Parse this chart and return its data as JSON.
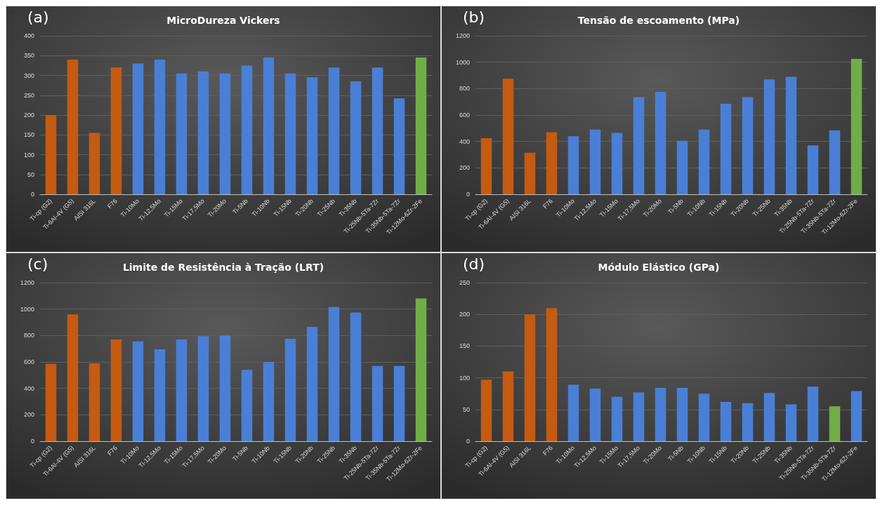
{
  "chart_data": [
    {
      "type": "bar",
      "title": "MicroDureza Vickers",
      "annotations": [
        "(a)"
      ],
      "categories": [
        "Ti-cp (G2)",
        "Ti-6Al-4V (G5)",
        "AISI 316L",
        "F76",
        "Ti-10Mo",
        "Ti-12,5Mo",
        "Ti-15Mo",
        "Ti-17,5Mo",
        "Ti-20Mo",
        "Ti-5Nb",
        "Ti-10Nb",
        "Ti-15Nb",
        "Ti-20Nb",
        "Ti-25Nb",
        "Ti-35Nb",
        "Ti-25Nb-5Ta-7Zr",
        "Ti-35Nb-5Ta-7Zr",
        "Ti-12Mo-6Zr-2Fe"
      ],
      "values": [
        200,
        340,
        155,
        320,
        330,
        340,
        305,
        310,
        305,
        325,
        345,
        305,
        295,
        320,
        285,
        320,
        242,
        345
      ],
      "colors": [
        "#c55a11",
        "#c55a11",
        "#c55a11",
        "#c55a11",
        "#4a7fd6",
        "#4a7fd6",
        "#4a7fd6",
        "#4a7fd6",
        "#4a7fd6",
        "#4a7fd6",
        "#4a7fd6",
        "#4a7fd6",
        "#4a7fd6",
        "#4a7fd6",
        "#4a7fd6",
        "#4a7fd6",
        "#4a7fd6",
        "#70ad47"
      ],
      "ylim": [
        0,
        400
      ],
      "yticks": [
        0,
        50,
        100,
        150,
        200,
        250,
        300,
        350,
        400
      ],
      "grid": "y"
    },
    {
      "type": "bar",
      "title": "Tensão de escoamento (MPa)",
      "annotations": [
        "(b)"
      ],
      "categories": [
        "Ti-cp (G2)",
        "Ti-6Al-4V (G5)",
        "AISI 316L",
        "F76",
        "Ti-10Mo",
        "Ti-12,5Mo",
        "Ti-15Mo",
        "Ti-17,5Mo",
        "Ti-20Mo",
        "Ti-5Nb",
        "Ti-10Nb",
        "Ti-15Nb",
        "Ti-20Nb",
        "Ti-25Nb",
        "Ti-35Nb",
        "Ti-25Nb-5Ta-7Zr",
        "Ti-35Nb-5Ta-7Zr",
        "Ti-12Mo-6Zr-2Fe"
      ],
      "values": [
        425,
        875,
        315,
        470,
        440,
        490,
        465,
        735,
        775,
        405,
        490,
        685,
        735,
        870,
        890,
        370,
        485,
        1025
      ],
      "colors": [
        "#c55a11",
        "#c55a11",
        "#c55a11",
        "#c55a11",
        "#4a7fd6",
        "#4a7fd6",
        "#4a7fd6",
        "#4a7fd6",
        "#4a7fd6",
        "#4a7fd6",
        "#4a7fd6",
        "#4a7fd6",
        "#4a7fd6",
        "#4a7fd6",
        "#4a7fd6",
        "#4a7fd6",
        "#4a7fd6",
        "#70ad47"
      ],
      "ylim": [
        0,
        1200
      ],
      "yticks": [
        0,
        200,
        400,
        600,
        800,
        1000,
        1200
      ],
      "grid": "y"
    },
    {
      "type": "bar",
      "title": "Limite de Resistência à Tração (LRT)",
      "annotations": [
        "(c)"
      ],
      "categories": [
        "Ti-cp (G2)",
        "Ti-6Al-4V (G5)",
        "AISI 316L",
        "F76",
        "Ti-10Mo",
        "Ti-12,5Mo",
        "Ti-15Mo",
        "Ti-17,5Mo",
        "Ti-20Mo",
        "Ti-5Nb",
        "Ti-10Nb",
        "Ti-15Nb",
        "Ti-20Nb",
        "Ti-25Nb",
        "Ti-35Nb",
        "Ti-25Nb-5Ta-7Zr",
        "Ti-35Nb-5Ta-7Zr",
        "Ti-12Mo-6Zr-2Fe"
      ],
      "values": [
        585,
        960,
        590,
        770,
        755,
        695,
        770,
        795,
        800,
        540,
        600,
        775,
        865,
        1015,
        975,
        570,
        570,
        1080
      ],
      "colors": [
        "#c55a11",
        "#c55a11",
        "#c55a11",
        "#c55a11",
        "#4a7fd6",
        "#4a7fd6",
        "#4a7fd6",
        "#4a7fd6",
        "#4a7fd6",
        "#4a7fd6",
        "#4a7fd6",
        "#4a7fd6",
        "#4a7fd6",
        "#4a7fd6",
        "#4a7fd6",
        "#4a7fd6",
        "#4a7fd6",
        "#70ad47"
      ],
      "ylim": [
        0,
        1200
      ],
      "yticks": [
        0,
        200,
        400,
        600,
        800,
        1000,
        1200
      ],
      "grid": "y"
    },
    {
      "type": "bar",
      "title": "Módulo Elástico (GPa)",
      "annotations": [
        "(d)"
      ],
      "categories": [
        "Ti-cp (G2)",
        "Ti-6Al-4V (G5)",
        "AISI 316L",
        "F76",
        "Ti-10Mo",
        "Ti-12,5Mo",
        "Ti-15Mo",
        "Ti-17,5Mo",
        "Ti-20Mo",
        "Ti-5Nb",
        "Ti-10Nb",
        "Ti-15Nb",
        "Ti-20Nb",
        "Ti-25Nb",
        "Ti-35Nb",
        "Ti-25Nb-5Ta-7Zr",
        "Ti-35Nb-5Ta-7Zr",
        "Ti-12Mo-6Zr-2Fe"
      ],
      "values": [
        97,
        110,
        200,
        210,
        89,
        83,
        70,
        77,
        84,
        84,
        75,
        62,
        60,
        76,
        58,
        86,
        55,
        79
      ],
      "colors": [
        "#c55a11",
        "#c55a11",
        "#c55a11",
        "#c55a11",
        "#4a7fd6",
        "#4a7fd6",
        "#4a7fd6",
        "#4a7fd6",
        "#4a7fd6",
        "#4a7fd6",
        "#4a7fd6",
        "#4a7fd6",
        "#4a7fd6",
        "#4a7fd6",
        "#4a7fd6",
        "#4a7fd6",
        "#70ad47",
        "#4a7fd6"
      ],
      "ylim": [
        0,
        250
      ],
      "yticks": [
        0,
        50,
        100,
        150,
        200,
        250
      ],
      "grid": "y"
    }
  ]
}
